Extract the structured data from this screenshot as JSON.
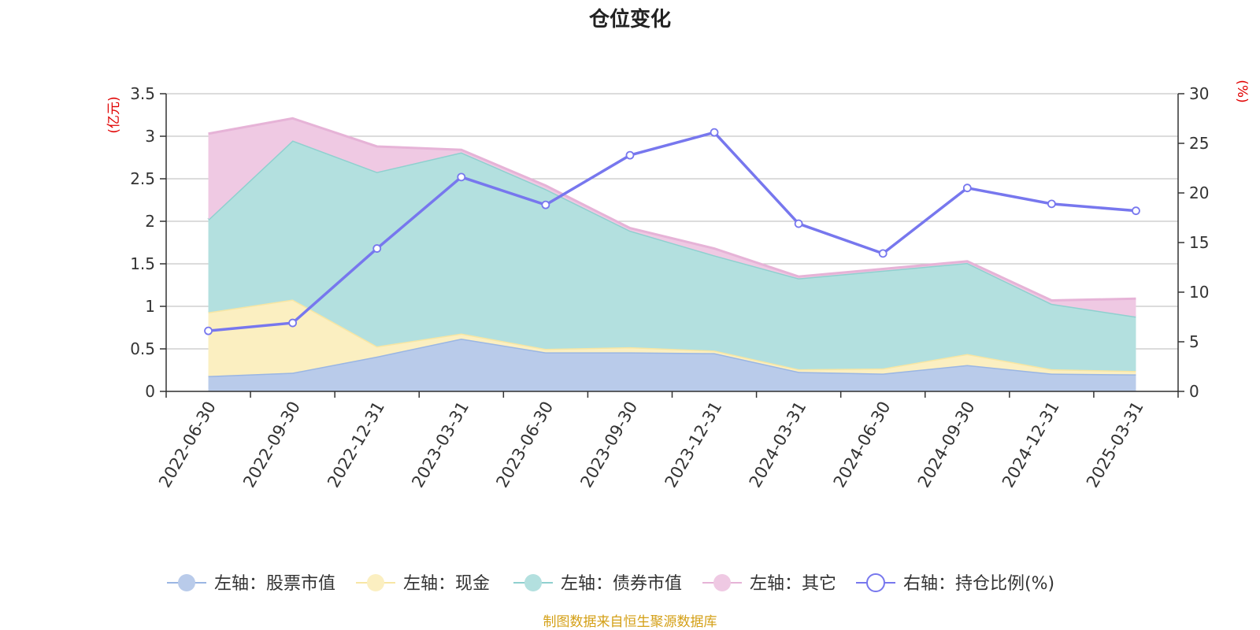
{
  "chart_data": {
    "type": "area+line",
    "title": "仓位变化",
    "categories": [
      "2022-06-30",
      "2022-09-30",
      "2022-12-31",
      "2023-03-31",
      "2023-06-30",
      "2023-09-30",
      "2023-12-31",
      "2024-03-31",
      "2024-06-30",
      "2024-09-30",
      "2024-12-31",
      "2025-03-31"
    ],
    "left_axis": {
      "unit": "(亿元)",
      "ylim": [
        0,
        3.5
      ],
      "ticks": [
        "0",
        "0.5",
        "1",
        "1.5",
        "2",
        "2.5",
        "3",
        "3.5"
      ]
    },
    "right_axis": {
      "unit": "(%)",
      "ylim": [
        0,
        30
      ],
      "ticks": [
        "0",
        "5",
        "10",
        "15",
        "20",
        "25",
        "30"
      ]
    },
    "stacked_series": [
      {
        "name": "左轴：股票市值",
        "color": "#9ab6e3",
        "fill": "#b9cbea",
        "values": [
          0.18,
          0.22,
          0.41,
          0.62,
          0.46,
          0.46,
          0.45,
          0.23,
          0.21,
          0.31,
          0.21,
          0.2
        ]
      },
      {
        "name": "左轴：现金",
        "color": "#f7e6a4",
        "fill": "#fbefc1",
        "values": [
          0.75,
          0.86,
          0.12,
          0.06,
          0.04,
          0.06,
          0.03,
          0.03,
          0.06,
          0.13,
          0.05,
          0.04
        ]
      },
      {
        "name": "左轴：债券市值",
        "color": "#8fd0cf",
        "fill": "#b3e0df",
        "values": [
          1.09,
          1.87,
          2.05,
          2.13,
          1.88,
          1.37,
          1.12,
          1.07,
          1.15,
          1.07,
          0.77,
          0.64
        ]
      },
      {
        "name": "左轴：其它",
        "color": "#e6b3d7",
        "fill": "#efc9e3",
        "values": [
          1.01,
          0.26,
          0.3,
          0.03,
          0.04,
          0.03,
          0.08,
          0.02,
          0.02,
          0.02,
          0.04,
          0.21
        ]
      }
    ],
    "line_series": {
      "name": "右轴：持仓比例(%)",
      "color": "#7777ee",
      "values": [
        6.1,
        6.9,
        14.4,
        21.6,
        18.8,
        23.8,
        26.1,
        16.9,
        13.9,
        20.5,
        18.9,
        18.2
      ]
    },
    "legend": [
      "左轴：股票市值",
      "左轴：现金",
      "左轴：债券市值",
      "左轴：其它",
      "右轴：持仓比例(%)"
    ],
    "source": "制图数据来自恒生聚源数据库"
  }
}
